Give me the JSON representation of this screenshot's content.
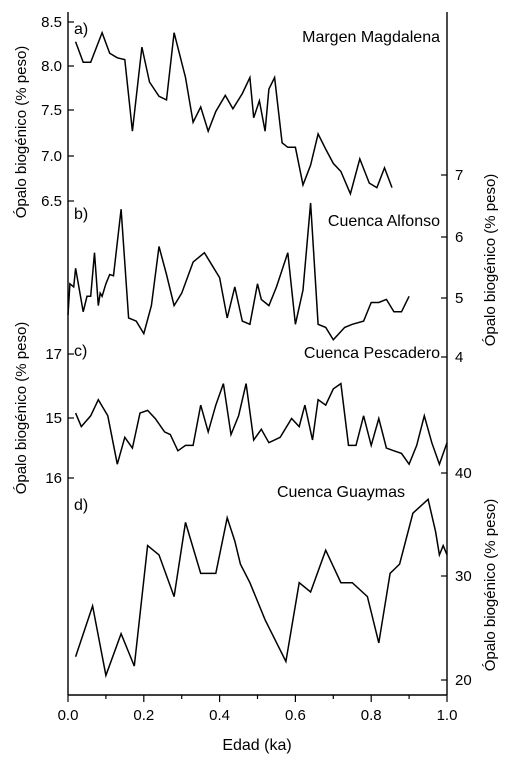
{
  "chart_data": {
    "type": "line",
    "xlabel": "Edad (ka)",
    "xlim": [
      0.0,
      1.0
    ],
    "xticks": [
      "0.0",
      "0.2",
      "0.4",
      "0.6",
      "0.8",
      "1.0"
    ],
    "grid": false,
    "panels": [
      {
        "letter": "a)",
        "title": "Margen Magdalena",
        "axis_side": "left",
        "ylabel": "Ópalo biogénico (% peso)",
        "ylim": [
          6.5,
          8.5
        ],
        "yticks": [
          "8.5",
          "8.0",
          "7.5",
          "7.0",
          "6.5"
        ],
        "series": [
          {
            "x": [
              0.02,
              0.04,
              0.06,
              0.09,
              0.11,
              0.13,
              0.15,
              0.17,
              0.195,
              0.215,
              0.24,
              0.26,
              0.28,
              0.31,
              0.33,
              0.35,
              0.37,
              0.39,
              0.415,
              0.435,
              0.46,
              0.48,
              0.49,
              0.505,
              0.52,
              0.53,
              0.545,
              0.565,
              0.58,
              0.6,
              0.62,
              0.64,
              0.66,
              0.68,
              0.7,
              0.72,
              0.745,
              0.77,
              0.795,
              0.815,
              0.835,
              0.855
            ],
            "y": [
              8.28,
              8.05,
              8.05,
              8.38,
              8.15,
              8.1,
              8.08,
              7.28,
              8.22,
              7.83,
              7.67,
              7.63,
              8.38,
              7.88,
              7.38,
              7.55,
              7.28,
              7.5,
              7.68,
              7.53,
              7.7,
              7.88,
              7.43,
              7.62,
              7.28,
              7.75,
              7.88,
              7.15,
              7.1,
              7.1,
              6.68,
              6.9,
              7.25,
              7.08,
              6.92,
              6.83,
              6.58,
              6.97,
              6.7,
              6.65,
              6.87,
              6.65
            ]
          }
        ]
      },
      {
        "letter": "b)",
        "title": "Cuenca Alfonso",
        "axis_side": "right",
        "ylabel": "Ópalo biogénico (% peso)",
        "ylim": [
          3.8,
          7.0
        ],
        "yticks": [
          "7",
          "6",
          "5",
          "4"
        ],
        "series": [
          {
            "x": [
              0.0,
              0.005,
              0.015,
              0.02,
              0.03,
              0.04,
              0.05,
              0.06,
              0.07,
              0.08,
              0.085,
              0.09,
              0.1,
              0.11,
              0.12,
              0.14,
              0.16,
              0.18,
              0.2,
              0.22,
              0.24,
              0.26,
              0.28,
              0.3,
              0.33,
              0.36,
              0.38,
              0.4,
              0.42,
              0.44,
              0.46,
              0.48,
              0.5,
              0.51,
              0.53,
              0.55,
              0.58,
              0.6,
              0.62,
              0.64,
              0.66,
              0.68,
              0.7,
              0.73,
              0.75,
              0.78,
              0.8,
              0.82,
              0.84,
              0.86,
              0.88,
              0.9
            ],
            "y": [
              4.75,
              5.25,
              5.2,
              5.5,
              5.15,
              4.8,
              5.05,
              5.05,
              5.75,
              4.9,
              5.1,
              5.05,
              5.25,
              5.4,
              5.38,
              6.45,
              4.7,
              4.65,
              4.45,
              4.9,
              5.85,
              5.4,
              4.9,
              5.1,
              5.6,
              5.75,
              5.55,
              5.35,
              4.7,
              5.2,
              4.65,
              4.6,
              5.25,
              5.0,
              4.9,
              5.2,
              5.75,
              4.6,
              5.15,
              6.55,
              4.6,
              4.55,
              4.35,
              4.55,
              4.6,
              4.65,
              4.95,
              4.95,
              5.0,
              4.8,
              4.8,
              5.05
            ]
          }
        ]
      },
      {
        "letter": "c)",
        "title": "Cuenca Pescadero",
        "axis_side": "left",
        "ylabel": "Ópalo biogénico (% peso)",
        "ylim": [
          12.8,
          17.6
        ],
        "yticks": [
          "17",
          "15",
          "16"
        ],
        "series": [
          {
            "x": [
              0.02,
              0.035,
              0.06,
              0.08,
              0.105,
              0.13,
              0.15,
              0.17,
              0.19,
              0.21,
              0.23,
              0.255,
              0.27,
              0.29,
              0.31,
              0.33,
              0.35,
              0.37,
              0.39,
              0.41,
              0.43,
              0.45,
              0.47,
              0.49,
              0.51,
              0.53,
              0.56,
              0.59,
              0.61,
              0.625,
              0.645,
              0.66,
              0.68,
              0.7,
              0.72,
              0.74,
              0.76,
              0.78,
              0.8,
              0.82,
              0.84,
              0.86,
              0.88,
              0.9,
              0.92,
              0.94,
              0.96,
              0.98,
              1.0
            ],
            "y": [
              15.4,
              14.9,
              15.3,
              15.9,
              15.3,
              13.5,
              14.5,
              14.1,
              15.4,
              15.5,
              15.2,
              14.7,
              14.6,
              14.0,
              14.2,
              14.2,
              15.7,
              14.7,
              15.7,
              16.5,
              14.6,
              15.3,
              16.5,
              14.4,
              14.8,
              14.3,
              14.5,
              15.2,
              14.9,
              15.7,
              14.4,
              15.9,
              15.7,
              16.3,
              16.5,
              14.2,
              14.2,
              15.3,
              14.2,
              15.2,
              14.1,
              14.0,
              13.9,
              13.5,
              14.2,
              15.3,
              14.3,
              13.5,
              14.3
            ]
          }
        ]
      },
      {
        "letter": "d)",
        "title": "Cuenca Guaymas",
        "axis_side": "right",
        "ylabel": "Ópalo biogénico (% peso)",
        "ylim": [
          19.5,
          40.0
        ],
        "yticks": [
          "40",
          "30",
          "20"
        ],
        "series": [
          {
            "x": [
              0.02,
              0.065,
              0.1,
              0.14,
              0.175,
              0.21,
              0.24,
              0.28,
              0.31,
              0.35,
              0.39,
              0.42,
              0.44,
              0.455,
              0.48,
              0.52,
              0.575,
              0.61,
              0.64,
              0.68,
              0.72,
              0.75,
              0.79,
              0.82,
              0.85,
              0.875,
              0.91,
              0.95,
              0.97,
              0.98,
              0.99,
              1.0
            ],
            "y": [
              22.0,
              27.5,
              20.0,
              24.5,
              21.0,
              34.0,
              33.0,
              28.5,
              36.5,
              31.0,
              31.0,
              37.0,
              34.5,
              32.0,
              30.0,
              26.0,
              21.5,
              30.0,
              29.0,
              33.5,
              30.0,
              30.0,
              28.5,
              23.5,
              31.0,
              32.0,
              37.5,
              39.0,
              35.5,
              33.0,
              34.0,
              33.0
            ]
          }
        ]
      }
    ]
  }
}
